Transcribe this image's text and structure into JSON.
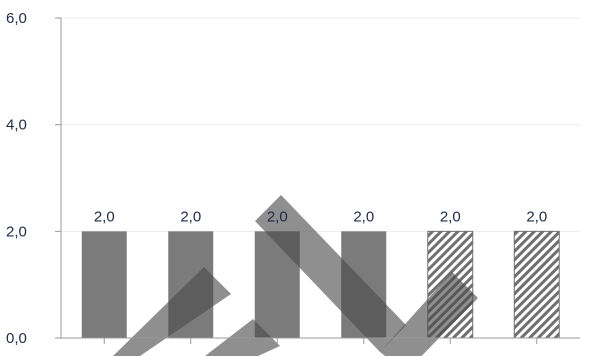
{
  "chart_data": {
    "type": "bar",
    "categories": [
      "",
      "",
      "",
      "",
      "",
      ""
    ],
    "values": [
      2.0,
      2.0,
      2.0,
      2.0,
      2.0,
      2.0
    ],
    "data_labels": [
      "2,0",
      "2,0",
      "2,0",
      "2,0",
      "2,0",
      "2,0"
    ],
    "bar_styles": [
      "solid",
      "solid",
      "solid",
      "solid",
      "hatched",
      "hatched"
    ],
    "title": "",
    "xlabel": "",
    "ylabel": "",
    "ylim": [
      0,
      6
    ],
    "yticks": [
      0,
      2,
      4,
      6
    ],
    "ytick_labels": [
      "0,0",
      "2,0",
      "4,0",
      "6,0"
    ],
    "grid": true,
    "legend": "none",
    "colors": {
      "bar": "#7b7b7b",
      "hatch": "#707070",
      "overlay": "#4a4a4a",
      "grid": "#ececec",
      "axis": "#9a9a9a",
      "text": "#1f2a44"
    }
  }
}
